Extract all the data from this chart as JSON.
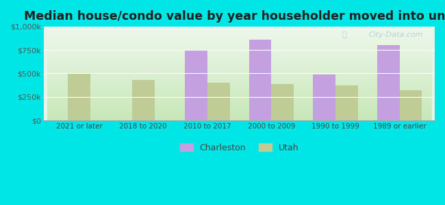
{
  "title": "Median house/condo value by year householder moved into unit",
  "categories": [
    "2021 or later",
    "2018 to 2020",
    "2010 to 2017",
    "2000 to 2009",
    "1990 to 1999",
    "1989 or earlier"
  ],
  "charleston_values": [
    0,
    0,
    740000,
    860000,
    490000,
    800000
  ],
  "utah_values": [
    500000,
    430000,
    400000,
    390000,
    370000,
    320000
  ],
  "charleston_color": "#c4a0e0",
  "utah_color": "#bfcc96",
  "background_outer": "#00e5e5",
  "background_chart_top": "#e8f5e8",
  "background_chart_bottom": "#c8e8c0",
  "ylim": [
    0,
    1000000
  ],
  "yticks": [
    0,
    250000,
    500000,
    750000,
    1000000
  ],
  "ytick_labels": [
    "$0",
    "$250k",
    "$500k",
    "$750k",
    "$1,000k"
  ],
  "title_fontsize": 12.5,
  "legend_labels": [
    "Charleston",
    "Utah"
  ],
  "bar_width": 0.35,
  "watermark": "City-Data.com"
}
